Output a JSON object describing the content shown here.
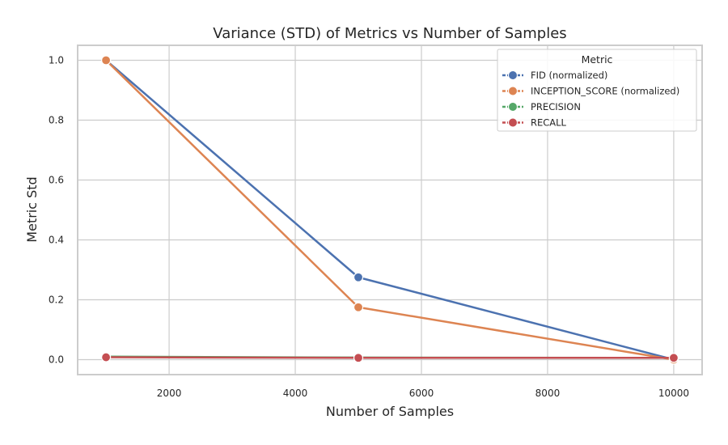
{
  "chart_data": {
    "type": "line",
    "title": "Variance (STD) of Metrics vs Number of Samples",
    "xlabel": "Number of Samples",
    "ylabel": "Metric Std",
    "x": [
      1000,
      5000,
      10000
    ],
    "xlim": [
      550,
      10450
    ],
    "ylim": [
      -0.05,
      1.05
    ],
    "xticks": [
      2000,
      4000,
      6000,
      8000,
      10000
    ],
    "xtick_labels": [
      "2000",
      "4000",
      "6000",
      "8000",
      "10000"
    ],
    "yticks": [
      0.0,
      0.2,
      0.4,
      0.6,
      0.8,
      1.0
    ],
    "ytick_labels": [
      "0.0",
      "0.2",
      "0.4",
      "0.6",
      "0.8",
      "1.0"
    ],
    "grid": true,
    "legend": {
      "title": "Metric",
      "placement": "top-right"
    },
    "series": [
      {
        "name": "FID (normalized)",
        "color": "#4c72b0",
        "values": [
          1.0,
          0.275,
          0.0
        ]
      },
      {
        "name": "INCEPTION_SCORE (normalized)",
        "color": "#dd8452",
        "values": [
          1.0,
          0.175,
          0.0
        ]
      },
      {
        "name": "PRECISION",
        "color": "#55a868",
        "values": [
          0.01,
          0.007,
          0.006
        ]
      },
      {
        "name": "RECALL",
        "color": "#c44e52",
        "values": [
          0.008,
          0.006,
          0.006
        ]
      }
    ]
  }
}
